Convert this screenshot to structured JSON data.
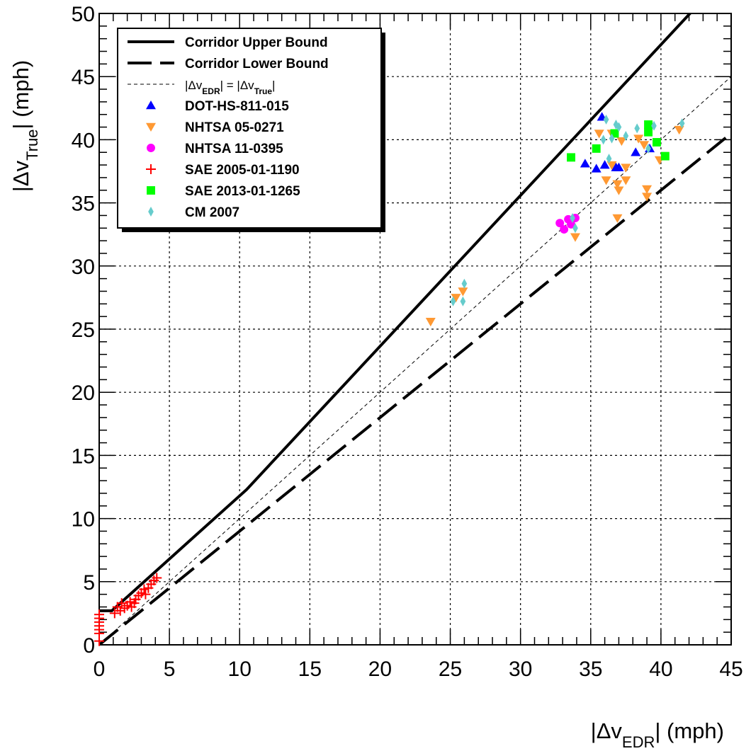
{
  "chart_data": {
    "type": "scatter",
    "title": "",
    "xlabel": "|Δv_EDR| (mph)",
    "ylabel": "|Δv_True| (mph)",
    "xlim": [
      0,
      45
    ],
    "ylim": [
      0,
      50
    ],
    "x_ticks": [
      "0",
      "5",
      "10",
      "15",
      "20",
      "25",
      "30",
      "35",
      "40",
      "45"
    ],
    "y_ticks": [
      "0",
      "5",
      "10",
      "15",
      "20",
      "25",
      "30",
      "35",
      "40",
      "45",
      "50"
    ],
    "grid": true,
    "legend_position": "top-left",
    "reference_lines": [
      {
        "name": "Corridor Upper Bound",
        "style": "solid-thick",
        "color": "#000000",
        "points": [
          [
            0,
            2.7
          ],
          [
            0.9,
            2.7
          ],
          [
            10.5,
            12.3
          ],
          [
            45,
            53.5
          ]
        ]
      },
      {
        "name": "Corridor Lower Bound",
        "style": "long-dash-thick",
        "color": "#000000",
        "points": [
          [
            0,
            0
          ],
          [
            45,
            40.5
          ]
        ]
      },
      {
        "name": "|Δv_EDR| = |Δv_True|",
        "style": "thin-dashed",
        "color": "#000000",
        "points": [
          [
            0,
            0
          ],
          [
            45,
            45
          ]
        ]
      }
    ],
    "series": [
      {
        "name": "DOT-HS-811-015",
        "marker": "triangle-up",
        "color": "#0000ff",
        "points": [
          [
            35.8,
            41.8
          ],
          [
            34.6,
            38.1
          ],
          [
            35.4,
            37.7
          ],
          [
            36.0,
            38.0
          ],
          [
            36.8,
            37.8
          ],
          [
            37.0,
            37.8
          ],
          [
            38.2,
            39.0
          ],
          [
            39.2,
            39.3
          ]
        ]
      },
      {
        "name": "NHTSA 05-0271",
        "marker": "triangle-down",
        "color": "#ff9933",
        "points": [
          [
            23.6,
            25.6
          ],
          [
            25.4,
            27.5
          ],
          [
            25.9,
            28.0
          ],
          [
            33.9,
            32.3
          ],
          [
            35.6,
            40.5
          ],
          [
            36.1,
            36.8
          ],
          [
            36.5,
            40.5
          ],
          [
            36.5,
            38.0
          ],
          [
            36.9,
            36.5
          ],
          [
            37.0,
            36.0
          ],
          [
            37.2,
            39.9
          ],
          [
            37.5,
            37.8
          ],
          [
            37.5,
            36.8
          ],
          [
            36.9,
            33.8
          ],
          [
            38.4,
            40.1
          ],
          [
            38.8,
            39.6
          ],
          [
            39.0,
            36.1
          ],
          [
            39.0,
            35.5
          ],
          [
            39.9,
            38.4
          ],
          [
            41.3,
            40.8
          ]
        ]
      },
      {
        "name": "NHTSA 11-0395",
        "marker": "circle",
        "color": "#ff00ff",
        "points": [
          [
            32.8,
            33.4
          ],
          [
            33.1,
            32.9
          ],
          [
            33.4,
            33.7
          ],
          [
            33.6,
            33.3
          ],
          [
            33.9,
            33.8
          ]
        ]
      },
      {
        "name": "SAE 2005-01-1190",
        "marker": "plus",
        "color": "#ff0000",
        "points": [
          [
            0,
            0.3
          ],
          [
            0,
            0.9
          ],
          [
            0,
            1.2
          ],
          [
            0,
            1.5
          ],
          [
            0,
            1.8
          ],
          [
            0,
            2.1
          ],
          [
            0,
            2.4
          ],
          [
            1.1,
            2.5
          ],
          [
            1.3,
            3.0
          ],
          [
            1.5,
            2.7
          ],
          [
            1.6,
            3.3
          ],
          [
            1.8,
            2.9
          ],
          [
            2.0,
            3.1
          ],
          [
            2.2,
            3.4
          ],
          [
            2.3,
            3.0
          ],
          [
            2.5,
            3.3
          ],
          [
            2.6,
            3.6
          ],
          [
            2.8,
            3.9
          ],
          [
            3.0,
            4.1
          ],
          [
            3.2,
            4.4
          ],
          [
            3.3,
            4.0
          ],
          [
            3.5,
            4.5
          ],
          [
            3.7,
            4.8
          ],
          [
            3.9,
            5.1
          ],
          [
            4.1,
            5.3
          ]
        ]
      },
      {
        "name": "SAE 2013-01-1265",
        "marker": "square",
        "color": "#00ff00",
        "points": [
          [
            33.6,
            38.6
          ],
          [
            35.4,
            39.3
          ],
          [
            36.7,
            40.5
          ],
          [
            39.1,
            41.2
          ],
          [
            39.1,
            40.6
          ],
          [
            39.7,
            39.8
          ],
          [
            40.3,
            38.7
          ]
        ]
      },
      {
        "name": "CM 2007",
        "marker": "diamond",
        "color": "#66cccc",
        "points": [
          [
            25.2,
            27.2
          ],
          [
            25.9,
            27.2
          ],
          [
            26.0,
            28.6
          ],
          [
            33.7,
            33.8
          ],
          [
            33.9,
            33.0
          ],
          [
            35.9,
            40.0
          ],
          [
            36.1,
            41.6
          ],
          [
            36.3,
            38.5
          ],
          [
            36.5,
            40.1
          ],
          [
            36.8,
            41.2
          ],
          [
            37.0,
            41.0
          ],
          [
            37.5,
            40.3
          ],
          [
            38.3,
            40.9
          ],
          [
            39.1,
            39.3
          ],
          [
            39.5,
            41.1
          ],
          [
            41.5,
            41.3
          ]
        ]
      }
    ]
  }
}
